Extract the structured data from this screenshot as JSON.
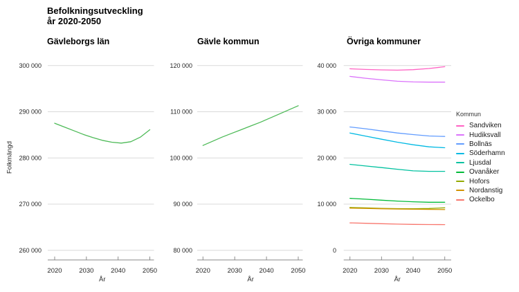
{
  "title": {
    "line1": "Befolkningsutveckling",
    "line2": "år 2020-2050"
  },
  "ylabel": "Folkmängd",
  "legend": {
    "title": "Kommun"
  },
  "colors": {
    "gridline": "#d9d9d9",
    "axis": "#8c8c8c",
    "tick_text": "#262626",
    "single_series_green": "#4dba57"
  },
  "chart_data": [
    {
      "type": "line",
      "title": "Gävleborgs län",
      "xlabel": "År",
      "ylabel": "Folkmängd",
      "x": [
        2020,
        2023,
        2026,
        2029,
        2032,
        2035,
        2038,
        2041,
        2044,
        2047,
        2050
      ],
      "series": [
        {
          "name": "Gävleborgs län",
          "color": "#4dba57",
          "values": [
            287500,
            286700,
            285900,
            285100,
            284400,
            283800,
            283400,
            283200,
            283500,
            284500,
            286100
          ]
        }
      ],
      "ylim": [
        260000,
        300000
      ],
      "xlim": [
        2020,
        2050
      ],
      "ytick_values": [
        300000,
        290000,
        280000,
        270000,
        260000
      ],
      "ytick_labels": [
        "300 000",
        "290 000",
        "280 000",
        "270 000",
        "260 000"
      ],
      "xtick_values": [
        2020,
        2030,
        2040,
        2050
      ],
      "xtick_labels": [
        "2020",
        "2030",
        "2040",
        "2050"
      ],
      "grid": "horizontal",
      "legend_position": "none"
    },
    {
      "type": "line",
      "title": "Gävle kommun",
      "xlabel": "År",
      "x": [
        2020,
        2023,
        2026,
        2029,
        2032,
        2035,
        2038,
        2041,
        2044,
        2047,
        2050
      ],
      "series": [
        {
          "name": "Gävle kommun",
          "color": "#4dba57",
          "values": [
            102700,
            103600,
            104500,
            105300,
            106100,
            106900,
            107700,
            108600,
            109500,
            110400,
            111300
          ]
        }
      ],
      "ylim": [
        80000,
        120000
      ],
      "xlim": [
        2020,
        2050
      ],
      "ytick_values": [
        120000,
        110000,
        100000,
        90000,
        80000
      ],
      "ytick_labels": [
        "120 000",
        "110 000",
        "100 000",
        "90 000",
        "80 000"
      ],
      "xtick_values": [
        2020,
        2030,
        2040,
        2050
      ],
      "xtick_labels": [
        "2020",
        "2030",
        "2040",
        "2050"
      ],
      "grid": "horizontal",
      "legend_position": "none"
    },
    {
      "type": "line",
      "title": "Övriga kommuner",
      "xlabel": "År",
      "x": [
        2020,
        2025,
        2030,
        2035,
        2040,
        2045,
        2050
      ],
      "series": [
        {
          "name": "Sandviken",
          "color": "#FF61C3",
          "values": [
            39300,
            39150,
            39050,
            39000,
            39100,
            39350,
            39750
          ]
        },
        {
          "name": "Hudiksvall",
          "color": "#DB72FB",
          "values": [
            37650,
            37250,
            36900,
            36600,
            36450,
            36400,
            36400
          ]
        },
        {
          "name": "Bollnäs",
          "color": "#619CFF",
          "values": [
            26700,
            26300,
            25850,
            25400,
            25050,
            24750,
            24650
          ]
        },
        {
          "name": "Söderhamn",
          "color": "#00B9E3",
          "values": [
            25400,
            24700,
            24050,
            23400,
            22850,
            22400,
            22200
          ]
        },
        {
          "name": "Ljusdal",
          "color": "#00C19F",
          "values": [
            18600,
            18250,
            17900,
            17550,
            17200,
            17100,
            17100
          ]
        },
        {
          "name": "Ovanåker",
          "color": "#00BA38",
          "values": [
            11250,
            11050,
            10850,
            10650,
            10500,
            10400,
            10400
          ]
        },
        {
          "name": "Hofors",
          "color": "#93AA00",
          "values": [
            9280,
            9180,
            9080,
            9020,
            9000,
            9050,
            9200
          ]
        },
        {
          "name": "Nordanstig",
          "color": "#D39200",
          "values": [
            9130,
            9060,
            8990,
            8930,
            8880,
            8850,
            8830
          ]
        },
        {
          "name": "Ockelbo",
          "color": "#F8766D",
          "values": [
            5930,
            5840,
            5750,
            5670,
            5600,
            5570,
            5560
          ]
        }
      ],
      "ylim": [
        0,
        40000
      ],
      "xlim": [
        2020,
        2050
      ],
      "ytick_values": [
        40000,
        30000,
        20000,
        10000,
        0
      ],
      "ytick_labels": [
        "40 000",
        "30 000",
        "20 000",
        "10 000",
        "0"
      ],
      "xtick_values": [
        2020,
        2030,
        2040,
        2050
      ],
      "xtick_labels": [
        "2020",
        "2030",
        "2040",
        "2050"
      ],
      "grid": "horizontal",
      "legend_position": "right",
      "legend_title": "Kommun"
    }
  ]
}
